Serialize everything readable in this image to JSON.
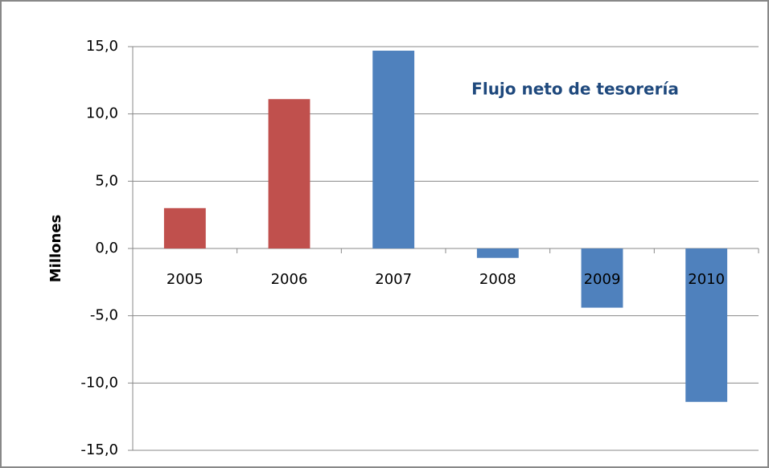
{
  "chart_data": {
    "type": "bar",
    "annotation": "Flujo neto de tesorería",
    "y_label": "Millones",
    "categories": [
      "2005",
      "2006",
      "2007",
      "2008",
      "2009",
      "2010"
    ],
    "values": [
      3.0,
      11.1,
      14.7,
      -0.7,
      -4.4,
      -11.4
    ],
    "colors": [
      "#c0504d",
      "#c0504d",
      "#4f81bd",
      "#4f81bd",
      "#4f81bd",
      "#4f81bd"
    ],
    "ylim": [
      -15,
      15
    ],
    "yticks": [
      {
        "value": -15,
        "label": "-15,0"
      },
      {
        "value": -10,
        "label": "-10,0"
      },
      {
        "value": -5,
        "label": "-5,0"
      },
      {
        "value": 0,
        "label": "0,0"
      },
      {
        "value": 5,
        "label": "5,0"
      },
      {
        "value": 10,
        "label": "10,0"
      },
      {
        "value": 15,
        "label": "15,0"
      }
    ],
    "grid": true
  }
}
